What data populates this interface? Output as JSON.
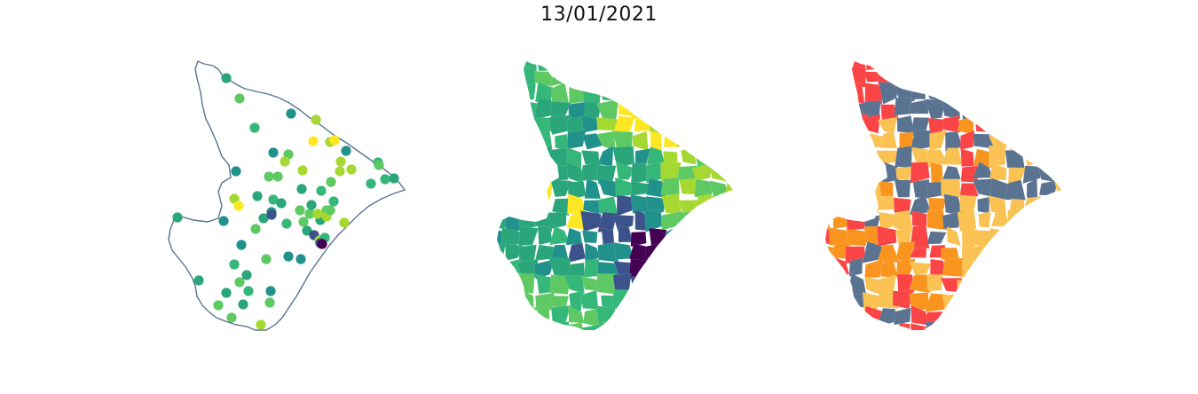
{
  "figure": {
    "title": "13/01/2021"
  },
  "colors": {
    "outline": "#5a7391",
    "viridis": [
      "#440154",
      "#3b528b",
      "#21918c",
      "#2aa67a",
      "#35b779",
      "#5ec962",
      "#a6d832",
      "#fde725"
    ],
    "classes": [
      "#5a7391",
      "#fa4446",
      "#f9951f",
      "#f9c253"
    ]
  },
  "panels": [
    {
      "name": "points",
      "kind": "point-map"
    },
    {
      "name": "choropleth",
      "kind": "viridis-choropleth"
    },
    {
      "name": "classes",
      "kind": "categorical-choropleth"
    }
  ]
}
